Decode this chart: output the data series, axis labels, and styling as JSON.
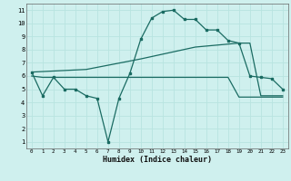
{
  "xlabel": "Humidex (Indice chaleur)",
  "bg_color": "#cff0ee",
  "grid_color": "#b8e4e0",
  "line_color": "#1a6b62",
  "line1_x": [
    0,
    1,
    2,
    3,
    4,
    5,
    6,
    7,
    8,
    9,
    10,
    11,
    12,
    13,
    14,
    15,
    16,
    17,
    18,
    19,
    20,
    21,
    22,
    23
  ],
  "line1_y": [
    6.3,
    4.5,
    5.9,
    5.0,
    5.0,
    4.5,
    4.3,
    1.0,
    4.3,
    6.2,
    8.8,
    10.4,
    10.9,
    11.0,
    10.3,
    10.3,
    9.5,
    9.5,
    8.7,
    8.5,
    6.0,
    5.9,
    5.8,
    5.0
  ],
  "line2_x": [
    0,
    5,
    10,
    15,
    19,
    20,
    21,
    22,
    23
  ],
  "line2_y": [
    6.3,
    6.5,
    7.3,
    8.2,
    8.5,
    8.5,
    4.5,
    4.5,
    4.5
  ],
  "line3_x": [
    0,
    1,
    18,
    19,
    23
  ],
  "line3_y": [
    6.0,
    5.9,
    5.9,
    4.4,
    4.4
  ],
  "xlim": [
    -0.5,
    23.5
  ],
  "ylim": [
    0.5,
    11.5
  ],
  "xticks": [
    0,
    1,
    2,
    3,
    4,
    5,
    6,
    7,
    8,
    9,
    10,
    11,
    12,
    13,
    14,
    15,
    16,
    17,
    18,
    19,
    20,
    21,
    22,
    23
  ],
  "yticks": [
    1,
    2,
    3,
    4,
    5,
    6,
    7,
    8,
    9,
    10,
    11
  ]
}
